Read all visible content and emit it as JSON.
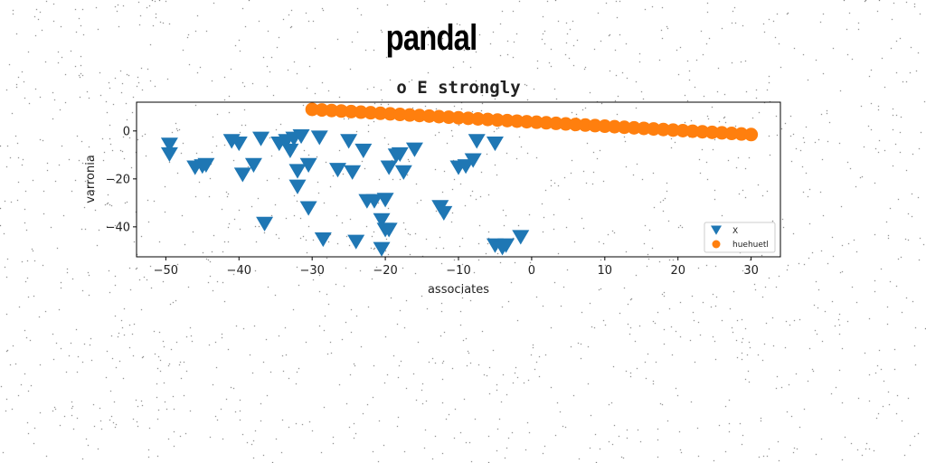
{
  "figure": {
    "title": "pandal"
  },
  "chart_data": {
    "type": "scatter",
    "title": "o E strongly",
    "xlabel": "associates",
    "ylabel": "varronia",
    "xlim": [
      -54,
      34
    ],
    "ylim": [
      -52.5,
      12
    ],
    "xticks": [
      -50,
      -40,
      -30,
      -20,
      -10,
      0,
      10,
      20,
      30
    ],
    "yticks": [
      0,
      -20,
      -40
    ],
    "legend_position": "lower-right",
    "series": [
      {
        "name": "X",
        "marker": "triangle-down",
        "color": "#1f77b4",
        "points": [
          [
            -49.5,
            -5.5
          ],
          [
            -49.5,
            -9.5
          ],
          [
            -46,
            -15
          ],
          [
            -45,
            -14.5
          ],
          [
            -44.5,
            -14
          ],
          [
            -41,
            -4
          ],
          [
            -40,
            -5
          ],
          [
            -39.5,
            -18
          ],
          [
            -38,
            -14
          ],
          [
            -37,
            -3
          ],
          [
            -36.5,
            -38.5
          ],
          [
            -34.5,
            -5
          ],
          [
            -33.5,
            -4
          ],
          [
            -33,
            -8
          ],
          [
            -32.5,
            -3
          ],
          [
            -32,
            -16.5
          ],
          [
            -32,
            -23
          ],
          [
            -31.5,
            -2
          ],
          [
            -30.5,
            -14
          ],
          [
            -30.5,
            -32
          ],
          [
            -29,
            -2.5
          ],
          [
            -28.5,
            -45
          ],
          [
            -26.5,
            -16
          ],
          [
            -25,
            -4
          ],
          [
            -24.5,
            -17
          ],
          [
            -24,
            -46
          ],
          [
            -23,
            -8
          ],
          [
            -22.5,
            -29
          ],
          [
            -21.5,
            -29
          ],
          [
            -20.5,
            -37
          ],
          [
            -20.5,
            -49
          ],
          [
            -20,
            -28.5
          ],
          [
            -20,
            -41
          ],
          [
            -19.5,
            -41
          ],
          [
            -19.5,
            -15
          ],
          [
            -18.5,
            -10
          ],
          [
            -18,
            -9.5
          ],
          [
            -17.5,
            -17
          ],
          [
            -16,
            -7.5
          ],
          [
            -12.5,
            -31.5
          ],
          [
            -12,
            -34
          ],
          [
            -10,
            -15
          ],
          [
            -9,
            -14.5
          ],
          [
            -8,
            -12
          ],
          [
            -7.5,
            -4
          ],
          [
            -5,
            -5
          ],
          [
            -5,
            -47.5
          ],
          [
            -4,
            -48.5
          ],
          [
            -3.5,
            -47.5
          ],
          [
            -1.5,
            -44
          ]
        ]
      },
      {
        "name": "huehuetl",
        "marker": "circle",
        "color": "#ff7f0e",
        "line": {
          "x_from": -30,
          "x_to": 30,
          "y_from": 9,
          "y_to": -1.5,
          "count": 46
        }
      }
    ]
  }
}
